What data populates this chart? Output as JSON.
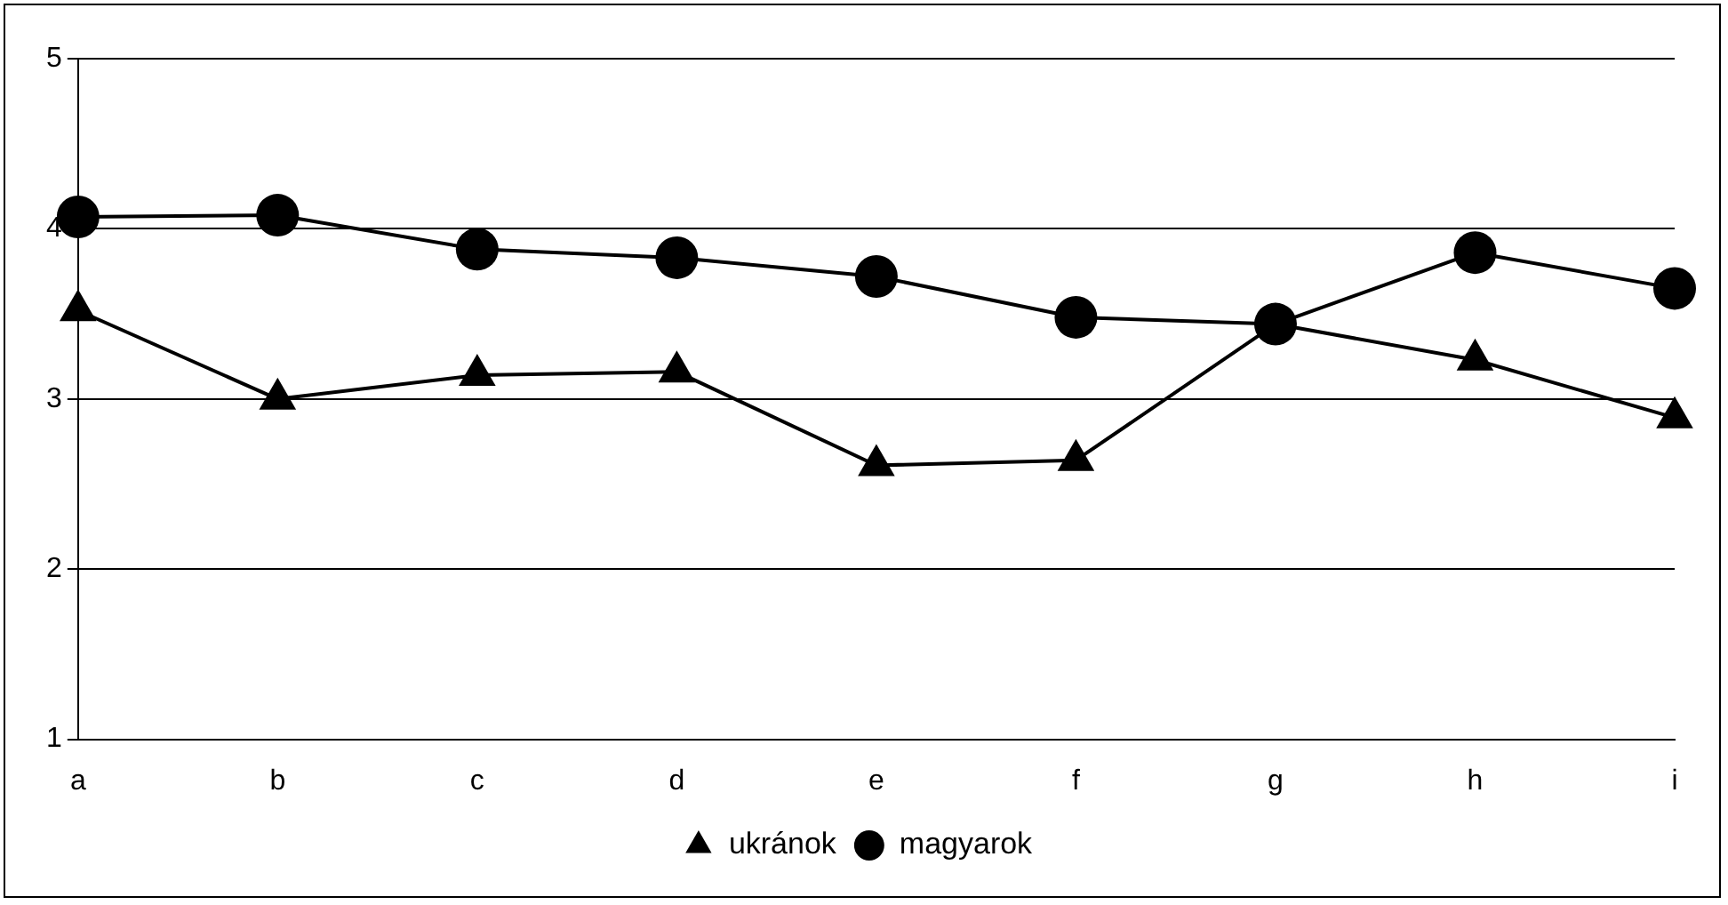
{
  "chart_data": {
    "type": "line",
    "categories": [
      "a",
      "b",
      "c",
      "d",
      "e",
      "f",
      "g",
      "h",
      "i"
    ],
    "series": [
      {
        "name": "ukránok",
        "color": "#000000",
        "marker": "triangle",
        "values": [
          3.52,
          3.0,
          3.14,
          3.16,
          2.61,
          2.64,
          3.44,
          3.23,
          2.89
        ]
      },
      {
        "name": "magyarok",
        "color": "#000000",
        "marker": "circle",
        "values": [
          4.07,
          4.08,
          3.88,
          3.83,
          3.72,
          3.48,
          3.44,
          3.86,
          3.65
        ]
      }
    ],
    "ylim": [
      1,
      5
    ],
    "yticks": [
      1,
      2,
      3,
      4,
      5
    ],
    "grid": "y",
    "legend": "bottom",
    "line_style": "solid"
  }
}
